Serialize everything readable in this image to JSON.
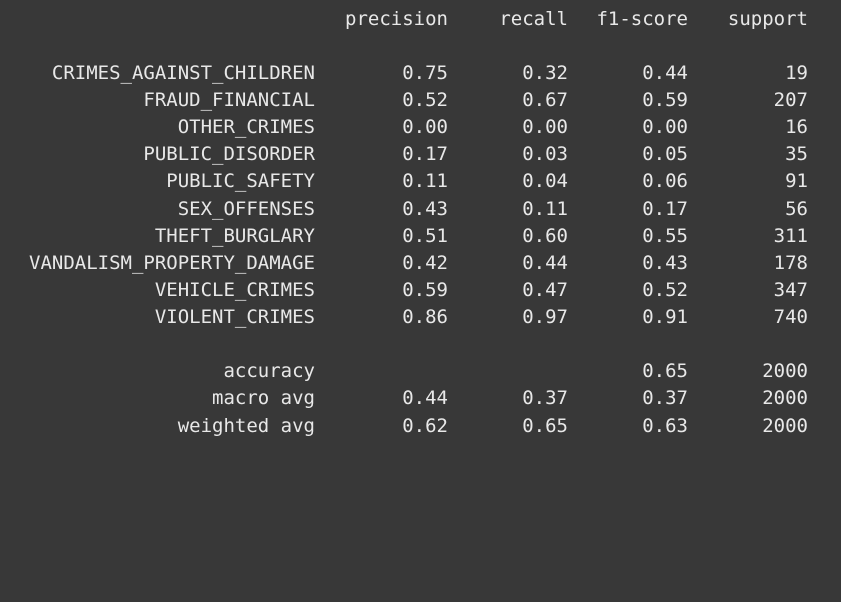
{
  "report": {
    "header": {
      "precision": "precision",
      "recall": "recall",
      "f1": "f1-score",
      "support": "support"
    },
    "classes": [
      {
        "label": "CRIMES_AGAINST_CHILDREN",
        "precision": "0.75",
        "recall": "0.32",
        "f1": "0.44",
        "support": "19"
      },
      {
        "label": "FRAUD_FINANCIAL",
        "precision": "0.52",
        "recall": "0.67",
        "f1": "0.59",
        "support": "207"
      },
      {
        "label": "OTHER_CRIMES",
        "precision": "0.00",
        "recall": "0.00",
        "f1": "0.00",
        "support": "16"
      },
      {
        "label": "PUBLIC_DISORDER",
        "precision": "0.17",
        "recall": "0.03",
        "f1": "0.05",
        "support": "35"
      },
      {
        "label": "PUBLIC_SAFETY",
        "precision": "0.11",
        "recall": "0.04",
        "f1": "0.06",
        "support": "91"
      },
      {
        "label": "SEX_OFFENSES",
        "precision": "0.43",
        "recall": "0.11",
        "f1": "0.17",
        "support": "56"
      },
      {
        "label": "THEFT_BURGLARY",
        "precision": "0.51",
        "recall": "0.60",
        "f1": "0.55",
        "support": "311"
      },
      {
        "label": "VANDALISM_PROPERTY_DAMAGE",
        "precision": "0.42",
        "recall": "0.44",
        "f1": "0.43",
        "support": "178"
      },
      {
        "label": "VEHICLE_CRIMES",
        "precision": "0.59",
        "recall": "0.47",
        "f1": "0.52",
        "support": "347"
      },
      {
        "label": "VIOLENT_CRIMES",
        "precision": "0.86",
        "recall": "0.97",
        "f1": "0.91",
        "support": "740"
      }
    ],
    "accuracy": {
      "label": "accuracy",
      "f1": "0.65",
      "support": "2000"
    },
    "macro_avg": {
      "label": "macro avg",
      "precision": "0.44",
      "recall": "0.37",
      "f1": "0.37",
      "support": "2000"
    },
    "weighted_avg": {
      "label": "weighted avg",
      "precision": "0.62",
      "recall": "0.65",
      "f1": "0.63",
      "support": "2000"
    }
  },
  "colors": {
    "background": "#383838",
    "text": "#e8e8e8"
  }
}
